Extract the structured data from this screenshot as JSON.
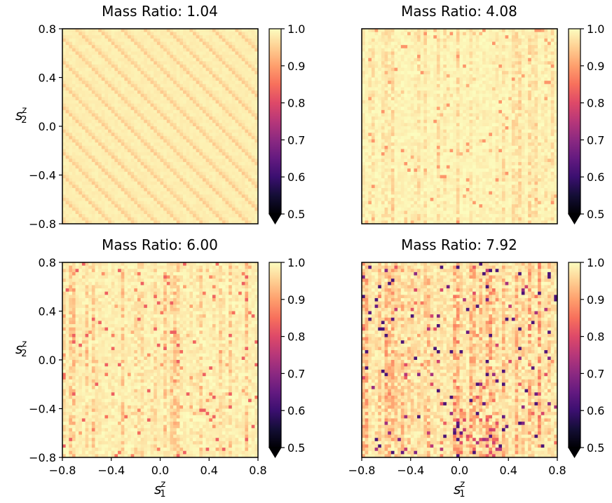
{
  "chart_data": {
    "type": "heatmap",
    "colormap": "magma",
    "grid": false,
    "color_scale": {
      "min": 0.5,
      "max": 1.0,
      "extend": "min",
      "ticks": [
        "1.0",
        "0.9",
        "0.8",
        "0.7",
        "0.6",
        "0.5"
      ]
    },
    "axis_ticks": [
      "−0.8",
      "−0.4",
      "0.0",
      "0.4",
      "0.8"
    ],
    "xlabel": {
      "main": "s",
      "sub": "1",
      "sup": "z"
    },
    "ylabel": {
      "main": "s",
      "sub": "2",
      "sup": "z"
    },
    "xlim": [
      -0.8,
      0.8
    ],
    "ylim": [
      -0.8,
      0.8
    ],
    "grid_resolution": [
      60,
      60
    ],
    "panels": [
      {
        "title": "Mass Ratio: 1.04",
        "mass_ratio": 1.04,
        "pattern": "diagonal stripes (lines of constant s1+s2)",
        "typical_value": 0.985,
        "min_value": 0.92,
        "show_ylabel": true,
        "show_xlabel": false,
        "show_yticks": true,
        "show_xticks": false
      },
      {
        "title": "Mass Ratio: 4.08",
        "mass_ratio": 4.08,
        "pattern": "mostly vertical streaks",
        "typical_value": 0.975,
        "min_value": 0.89,
        "show_ylabel": false,
        "show_xlabel": false,
        "show_yticks": false,
        "show_xticks": false
      },
      {
        "title": "Mass Ratio: 6.00",
        "mass_ratio": 6.0,
        "pattern": "vertical streaks",
        "typical_value": 0.965,
        "min_value": 0.83,
        "show_ylabel": true,
        "show_xlabel": true,
        "show_yticks": true,
        "show_xticks": true
      },
      {
        "title": "Mass Ratio: 7.92",
        "mass_ratio": 7.92,
        "pattern": "strong vertical streaks, lowest values near bottom center-right",
        "typical_value": 0.94,
        "min_value": 0.62,
        "show_ylabel": false,
        "show_xlabel": true,
        "show_yticks": false,
        "show_xticks": true
      }
    ]
  }
}
